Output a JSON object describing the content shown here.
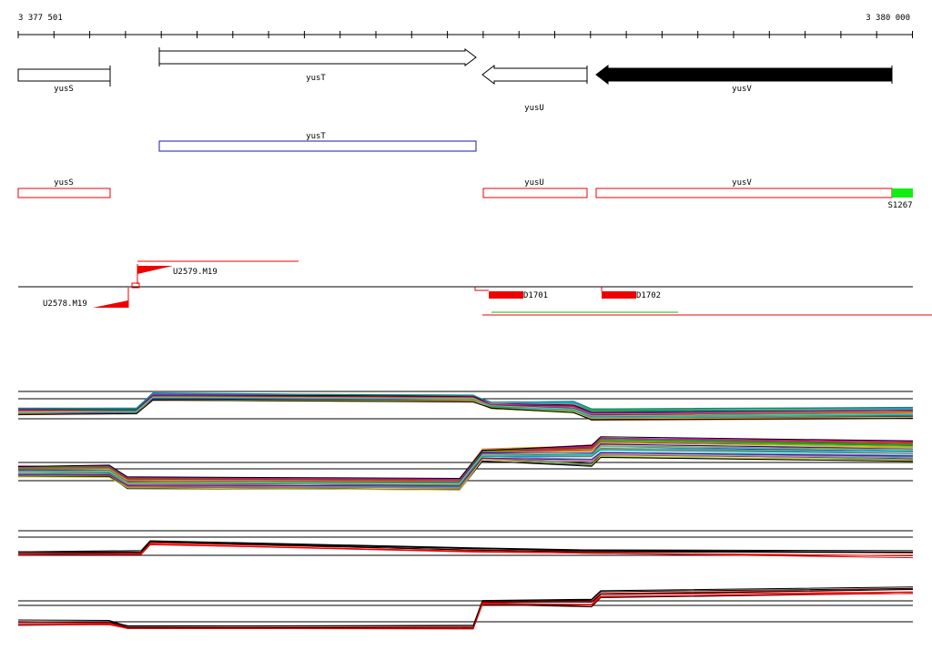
{
  "ruler": {
    "start": "3 377 501",
    "end": "3 380 000"
  },
  "genes": [
    {
      "label": "yusS"
    },
    {
      "label": "yusT"
    },
    {
      "label": "yusU"
    },
    {
      "label": "yusV"
    }
  ],
  "transcripts": [
    {
      "label": "yusT"
    }
  ],
  "segments": [
    {
      "label": "yusS"
    },
    {
      "label": "yusU"
    },
    {
      "label": "yusV"
    },
    {
      "label": "S1267"
    }
  ],
  "features": [
    {
      "label": "U2579.M19"
    },
    {
      "label": "U2578.M19"
    },
    {
      "label": "D1701"
    },
    {
      "label": "D1702"
    }
  ]
}
